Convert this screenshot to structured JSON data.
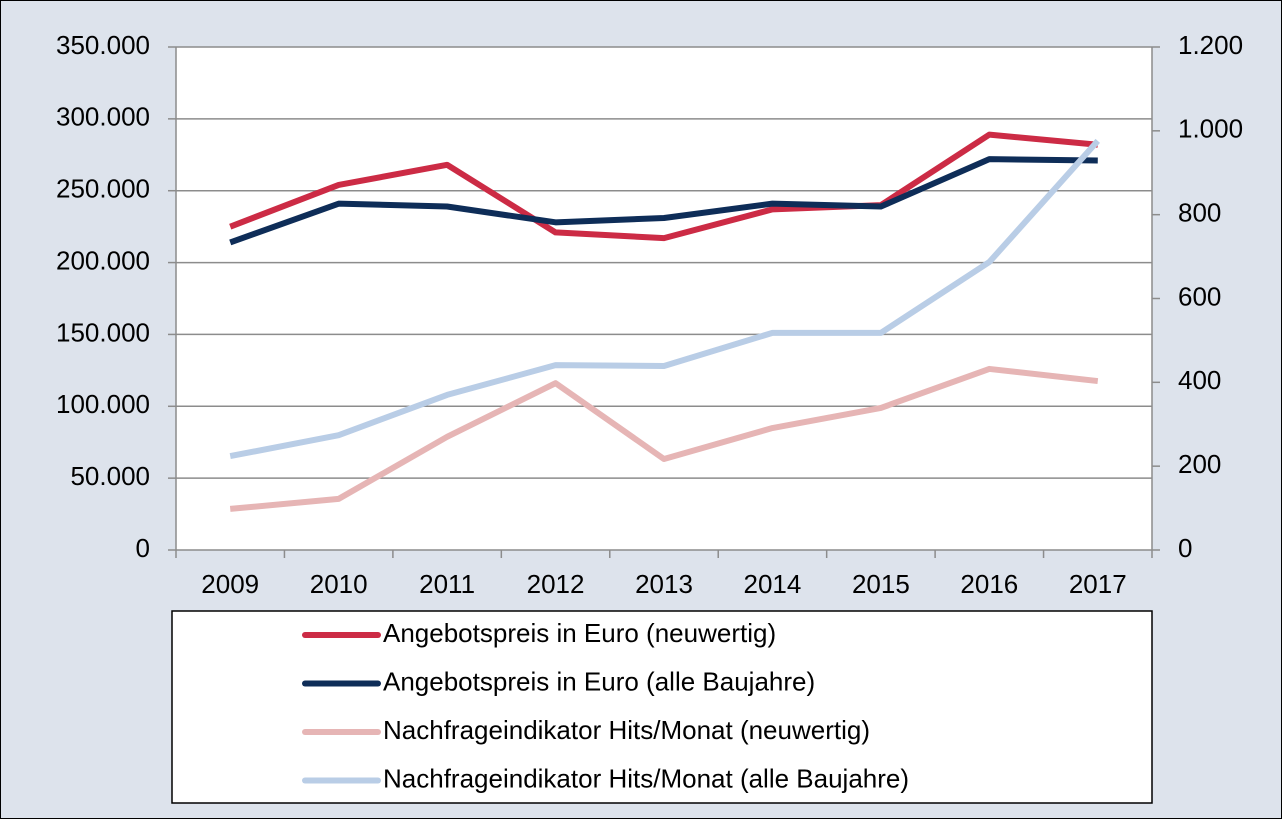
{
  "chart_data": {
    "type": "line",
    "categories": [
      "2009",
      "2010",
      "2011",
      "2012",
      "2013",
      "2014",
      "2015",
      "2016",
      "2017"
    ],
    "series": [
      {
        "name": "Angebotspreis in Euro (neuwertig)",
        "color": "#cc2b45",
        "values": [
          225000,
          254000,
          268000,
          221000,
          217000,
          237000,
          240000,
          289000,
          282000
        ]
      },
      {
        "name": "Angebotspreis in Euro (alle Baujahre)",
        "color": "#0e2d58",
        "values": [
          214000,
          241000,
          239000,
          228000,
          231000,
          241000,
          239000,
          272000,
          271000
        ]
      },
      {
        "name": "Nachfrageindikator Hits/Monat (neuwertig)",
        "color": "#e6b5b5",
        "axis": "y2",
        "values": [
          98,
          122,
          270,
          398,
          217,
          291,
          339,
          432,
          403
        ]
      },
      {
        "name": "Nachfrageindikator Hits/Monat (alle Baujahre)",
        "color": "#b9cde6",
        "axis": "y2",
        "values": [
          224,
          274,
          370,
          441,
          439,
          518,
          518,
          687,
          976
        ]
      }
    ],
    "ylim": [
      0,
      350000
    ],
    "yticks": [
      0,
      {
        "value": 50000,
        "label": "50.000"
      },
      {
        "value": 100000,
        "label": "100.000"
      },
      {
        "value": 150000,
        "label": "150.000"
      },
      {
        "value": 200000,
        "label": "200.000"
      },
      {
        "value": 250000,
        "label": "250.000"
      },
      {
        "value": 300000,
        "label": "300.000"
      },
      {
        "value": 350000,
        "label": "350.000"
      }
    ],
    "y2lim": [
      0,
      1200
    ],
    "y2ticks": [
      0,
      200,
      400,
      600,
      800,
      {
        "value": 1000,
        "label": "1.000"
      },
      {
        "value": 1200,
        "label": "1.200"
      }
    ],
    "grid": true,
    "legend": "bottom"
  }
}
